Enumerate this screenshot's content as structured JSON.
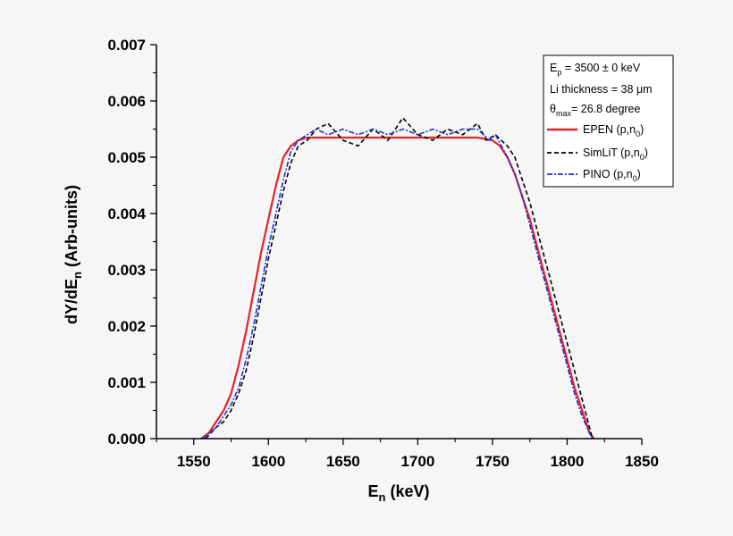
{
  "chart_data": {
    "type": "line",
    "x_axis": {
      "label_main": "E",
      "label_sub": "n",
      "label_rest": " (keV)",
      "range": [
        1525,
        1850
      ],
      "ticks": [
        1550,
        1600,
        1650,
        1700,
        1750,
        1800,
        1850
      ],
      "tick_labels": [
        "1550",
        "1600",
        "1650",
        "1700",
        "1750",
        "1800",
        "1850"
      ]
    },
    "y_axis": {
      "label_main": "dY/dE",
      "label_sub": "n",
      "label_rest": " (Arb-units)",
      "range": [
        0,
        0.007
      ],
      "ticks": [
        0,
        0.001,
        0.002,
        0.003,
        0.004,
        0.005,
        0.006,
        0.007
      ],
      "tick_labels": [
        "0.000",
        "0.001",
        "0.002",
        "0.003",
        "0.004",
        "0.005",
        "0.006",
        "0.007"
      ]
    },
    "legend": {
      "position": "top-right",
      "info_lines": [
        {
          "main": "E",
          "sub": "p",
          "rest": " = 3500 ± 0 keV"
        },
        {
          "main": "Li thickness = 38 ",
          "sub": "",
          "rest": "μm"
        },
        {
          "main": "θ",
          "sub": "max",
          "rest": "= 26.8 degree"
        }
      ]
    },
    "series": [
      {
        "name_main": "EPEN (p,n",
        "name_sub": "0",
        "name_tail": ")",
        "color": "#e8202a",
        "style": "solid",
        "x": [
          1555,
          1560,
          1565,
          1570,
          1575,
          1580,
          1585,
          1590,
          1595,
          1600,
          1605,
          1610,
          1615,
          1620,
          1626,
          1640,
          1660,
          1680,
          1700,
          1720,
          1740,
          1750,
          1755,
          1760,
          1765,
          1770,
          1775,
          1780,
          1785,
          1790,
          1795,
          1800,
          1805,
          1810,
          1815,
          1818
        ],
        "y": [
          0.0,
          0.0001,
          0.0003,
          0.0005,
          0.0008,
          0.0013,
          0.0019,
          0.0026,
          0.0033,
          0.0039,
          0.0045,
          0.005,
          0.0052,
          0.0053,
          0.00535,
          0.00535,
          0.00535,
          0.00535,
          0.00535,
          0.00535,
          0.00535,
          0.0053,
          0.0052,
          0.005,
          0.0047,
          0.0043,
          0.0039,
          0.0034,
          0.0029,
          0.0024,
          0.0019,
          0.0014,
          0.0009,
          0.0005,
          0.0001,
          0.0
        ]
      },
      {
        "name_main": "SimLiT (p,n",
        "name_sub": "0",
        "name_tail": ")",
        "color": "#000000",
        "style": "dash",
        "x": [
          1558,
          1565,
          1570,
          1575,
          1580,
          1585,
          1590,
          1595,
          1600,
          1605,
          1610,
          1615,
          1620,
          1626,
          1632,
          1640,
          1650,
          1660,
          1670,
          1680,
          1690,
          1700,
          1710,
          1720,
          1730,
          1740,
          1746,
          1752,
          1756,
          1760,
          1765,
          1770,
          1775,
          1780,
          1785,
          1790,
          1795,
          1800,
          1805,
          1810,
          1815,
          1817
        ],
        "y": [
          0.0,
          0.0002,
          0.0003,
          0.0005,
          0.0008,
          0.0012,
          0.0018,
          0.0025,
          0.0032,
          0.0038,
          0.0044,
          0.0049,
          0.0052,
          0.0053,
          0.0055,
          0.0056,
          0.0053,
          0.0052,
          0.0055,
          0.0053,
          0.0057,
          0.0054,
          0.0053,
          0.0055,
          0.0054,
          0.0056,
          0.0053,
          0.0054,
          0.0053,
          0.0052,
          0.005,
          0.0046,
          0.0042,
          0.0037,
          0.0032,
          0.0027,
          0.0022,
          0.0017,
          0.0012,
          0.0007,
          0.0002,
          0.0
        ]
      },
      {
        "name_main": "PINO (p,n",
        "name_sub": "0",
        "name_tail": ")",
        "color": "#1f2fd6",
        "style": "dashdot",
        "x": [
          1556,
          1565,
          1570,
          1575,
          1580,
          1585,
          1590,
          1595,
          1600,
          1605,
          1610,
          1615,
          1620,
          1626,
          1632,
          1640,
          1650,
          1660,
          1670,
          1680,
          1690,
          1700,
          1710,
          1720,
          1730,
          1740,
          1748,
          1752,
          1756,
          1760,
          1765,
          1770,
          1775,
          1780,
          1785,
          1790,
          1795,
          1800,
          1805,
          1810,
          1815,
          1817
        ],
        "y": [
          0.0,
          0.0002,
          0.0004,
          0.0006,
          0.0009,
          0.0014,
          0.002,
          0.0027,
          0.0034,
          0.004,
          0.0046,
          0.0051,
          0.0053,
          0.0054,
          0.0055,
          0.0054,
          0.0055,
          0.0054,
          0.0055,
          0.0054,
          0.0055,
          0.0054,
          0.0055,
          0.0054,
          0.0055,
          0.0055,
          0.0053,
          0.0054,
          0.0052,
          0.005,
          0.0047,
          0.0043,
          0.0038,
          0.0033,
          0.0028,
          0.0023,
          0.0018,
          0.0013,
          0.0008,
          0.0004,
          0.0001,
          0.0
        ]
      }
    ]
  }
}
